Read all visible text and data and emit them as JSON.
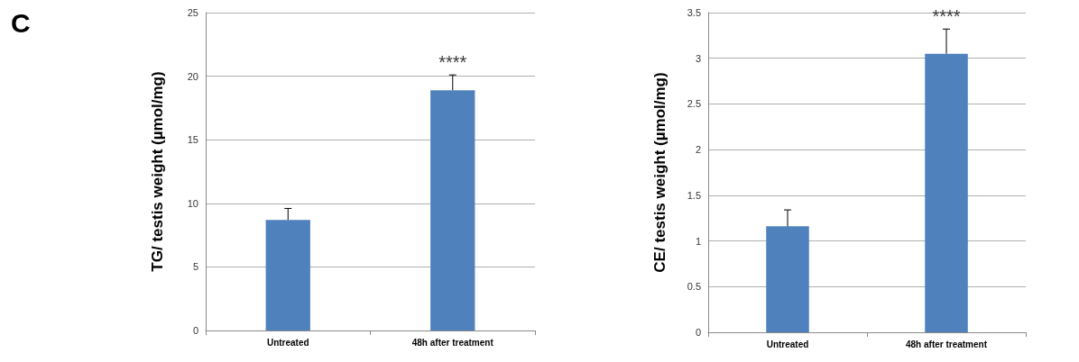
{
  "chart_data": [
    {
      "type": "bar",
      "ylabel": "TG/ testis weight (µmol/mg)",
      "categories": [
        "Untreated",
        "48h after treatment"
      ],
      "values": [
        8.7,
        18.9
      ],
      "color": "#4f81bd",
      "errors": [
        [
          8.7,
          9.6
        ],
        [
          18.9,
          20.1
        ]
      ],
      "ylim": [
        0,
        25
      ],
      "yticks": [
        0,
        5,
        10,
        15,
        20,
        25
      ],
      "grid": "y",
      "title": "C",
      "annotations": [
        "****"
      ]
    },
    {
      "type": "bar",
      "ylabel": "CE/ testis weight (µmol/mg)",
      "categories": [
        "Untreated",
        "48h after treatment"
      ],
      "values": [
        1.16,
        3.05
      ],
      "color": "#4f81bd",
      "errors": [
        [
          1.16,
          1.34
        ],
        [
          3.05,
          3.32
        ]
      ],
      "ylim": [
        0,
        3.5
      ],
      "yticks": [
        0,
        0.5,
        1,
        1.5,
        2,
        2.5,
        3,
        3.5
      ],
      "grid": "y",
      "annotations": [
        "****"
      ]
    }
  ]
}
